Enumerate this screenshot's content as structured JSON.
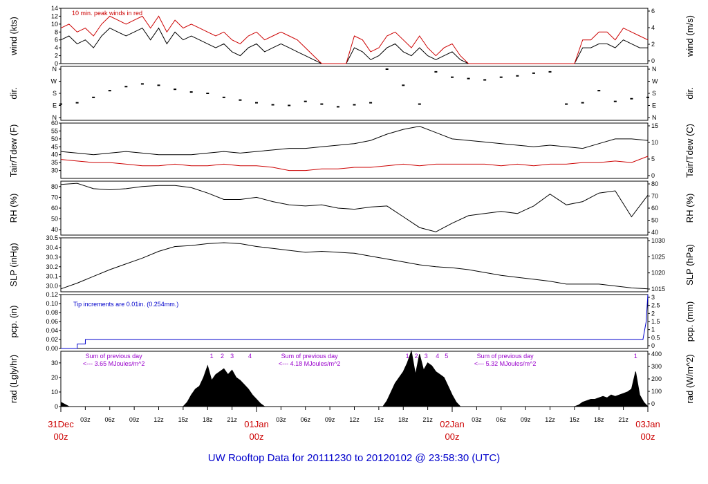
{
  "title": "UW Rooftop Data for 20111230  to  20120102 @ 23:58:30  (UTC)",
  "colors": {
    "accent": "#cc0000",
    "title": "#0000cc",
    "pcp": "#0000cc",
    "rad_note": "#9900cc",
    "trace": "#000000"
  },
  "chart_data": [
    {
      "type": "line",
      "panel": "wind",
      "ylabel_left": "wind (kts)",
      "ylabel_right": "wind (m/s)",
      "annotation": "10 min. peak winds in red",
      "ylim": [
        0,
        14
      ],
      "yticks_left": [
        "0",
        "2",
        "4",
        "6",
        "8",
        "10",
        "12",
        "14"
      ],
      "yticks_right": [
        "0",
        "2",
        "4",
        "6"
      ],
      "x": [
        0,
        1,
        2,
        3,
        4,
        5,
        6,
        7,
        8,
        9,
        10,
        11,
        12,
        13,
        14,
        15,
        16,
        17,
        18,
        19,
        20,
        21,
        22,
        23,
        24,
        25,
        26,
        27,
        28,
        29,
        30,
        31,
        32,
        33,
        34,
        35,
        36,
        37,
        38,
        39,
        40,
        41,
        42,
        43,
        44,
        45,
        46,
        47,
        48,
        49,
        50,
        51,
        52,
        53,
        54,
        55,
        56,
        57,
        58,
        59,
        60,
        61,
        62,
        63,
        64,
        65,
        66,
        67,
        68,
        69,
        70,
        71,
        72
      ],
      "series": [
        {
          "values": [
            6,
            7,
            5,
            6,
            4,
            7,
            9,
            8,
            7,
            8,
            9,
            6,
            9,
            5,
            8,
            6,
            7,
            6,
            5,
            4,
            5,
            3,
            2,
            4,
            5,
            3,
            4,
            5,
            4,
            3,
            2,
            1,
            0,
            0,
            0,
            0,
            4,
            3,
            1,
            2,
            4,
            5,
            3,
            2,
            4,
            2,
            1,
            2,
            3,
            1,
            0,
            0,
            0,
            0,
            0,
            0,
            0,
            0,
            0,
            0,
            0,
            0,
            0,
            0,
            4,
            4,
            5,
            5,
            4,
            6,
            5,
            4,
            4
          ]
        },
        {
          "values": [
            9,
            10,
            8,
            9,
            7,
            10,
            12,
            11,
            10,
            11,
            12,
            9,
            12,
            8,
            11,
            9,
            10,
            9,
            8,
            7,
            8,
            6,
            5,
            7,
            8,
            6,
            7,
            8,
            7,
            6,
            4,
            2,
            0,
            0,
            0,
            0,
            7,
            6,
            3,
            4,
            7,
            8,
            6,
            4,
            7,
            4,
            2,
            4,
            5,
            2,
            0,
            0,
            0,
            0,
            0,
            0,
            0,
            0,
            0,
            0,
            0,
            0,
            0,
            0,
            6,
            6,
            8,
            8,
            6,
            9,
            8,
            7,
            6
          ]
        }
      ]
    },
    {
      "type": "scatter",
      "panel": "dir",
      "ylabel_left": "dir.",
      "ylabel_right": "dir.",
      "yticks": [
        "N",
        "E",
        "S",
        "W",
        "N"
      ],
      "x": [
        0,
        2,
        4,
        6,
        8,
        10,
        12,
        14,
        16,
        18,
        20,
        22,
        24,
        26,
        28,
        30,
        32,
        34,
        36,
        38,
        40,
        42,
        44,
        46,
        48,
        50,
        52,
        54,
        56,
        58,
        60,
        62,
        64,
        66,
        68,
        70,
        72
      ],
      "values": [
        100,
        110,
        150,
        200,
        230,
        250,
        240,
        210,
        190,
        180,
        150,
        130,
        110,
        95,
        90,
        120,
        100,
        80,
        95,
        110,
        360,
        240,
        100,
        340,
        300,
        290,
        280,
        300,
        310,
        330,
        340,
        100,
        110,
        200,
        120,
        140,
        150
      ]
    },
    {
      "type": "line",
      "panel": "temp",
      "ylabel_left": "Tair/Tdew (F)",
      "ylabel_right": "Tair/Tdew (C)",
      "ylim": [
        25,
        60
      ],
      "yticks_left": [
        "30",
        "35",
        "40",
        "45",
        "50",
        "55",
        "60"
      ],
      "yticks_right": [
        "0",
        "5",
        "10",
        "15"
      ],
      "x": [
        0,
        2,
        4,
        6,
        8,
        10,
        12,
        14,
        16,
        18,
        20,
        22,
        24,
        26,
        28,
        30,
        32,
        34,
        36,
        38,
        40,
        42,
        44,
        46,
        48,
        50,
        52,
        54,
        56,
        58,
        60,
        62,
        64,
        66,
        68,
        70,
        72
      ],
      "series": [
        {
          "values": [
            42,
            41,
            40,
            41,
            42,
            41,
            40,
            40,
            40,
            41,
            42,
            41,
            42,
            43,
            44,
            44,
            45,
            46,
            47,
            49,
            53,
            56,
            58,
            54,
            50,
            49,
            48,
            47,
            46,
            45,
            46,
            45,
            44,
            47,
            50,
            50,
            49
          ]
        },
        {
          "values": [
            37,
            36,
            35,
            35,
            34,
            33,
            33,
            34,
            33,
            33,
            34,
            33,
            33,
            32,
            30,
            30,
            31,
            31,
            32,
            32,
            33,
            34,
            33,
            34,
            34,
            34,
            34,
            33,
            34,
            33,
            34,
            34,
            35,
            35,
            36,
            35,
            39
          ]
        }
      ]
    },
    {
      "type": "line",
      "panel": "rh",
      "ylabel_left": "RH (%)",
      "ylabel_right": "RH (%)",
      "ylim": [
        35,
        85
      ],
      "yticks_left": [
        "40",
        "50",
        "60",
        "70",
        "80"
      ],
      "yticks_right": [
        "40",
        "50",
        "60",
        "70",
        "80"
      ],
      "x": [
        0,
        2,
        4,
        6,
        8,
        10,
        12,
        14,
        16,
        18,
        20,
        22,
        24,
        26,
        28,
        30,
        32,
        34,
        36,
        38,
        40,
        42,
        44,
        46,
        48,
        50,
        52,
        54,
        56,
        58,
        60,
        62,
        64,
        66,
        68,
        70,
        72
      ],
      "values": [
        82,
        83,
        78,
        77,
        78,
        80,
        81,
        81,
        79,
        74,
        68,
        68,
        70,
        66,
        63,
        62,
        63,
        60,
        59,
        61,
        62,
        52,
        42,
        38,
        46,
        53,
        55,
        57,
        55,
        62,
        73,
        63,
        66,
        74,
        76,
        52,
        72
      ]
    },
    {
      "type": "line",
      "panel": "slp",
      "ylabel_left": "SLP (inHg)",
      "ylabel_right": "SLP (hPa)",
      "ylim": [
        29.94,
        30.5
      ],
      "yticks_left": [
        "30.0",
        "30.1",
        "30.2",
        "30.3",
        "30.4",
        "30.5"
      ],
      "yticks_right": [
        "1015",
        "1020",
        "1025",
        "1030"
      ],
      "x": [
        0,
        2,
        4,
        6,
        8,
        10,
        12,
        14,
        16,
        18,
        20,
        22,
        24,
        26,
        28,
        30,
        32,
        34,
        36,
        38,
        40,
        42,
        44,
        46,
        48,
        50,
        52,
        54,
        56,
        58,
        60,
        62,
        64,
        66,
        68,
        70,
        72
      ],
      "values": [
        29.97,
        30.03,
        30.1,
        30.17,
        30.23,
        30.29,
        30.36,
        30.41,
        30.42,
        30.44,
        30.45,
        30.44,
        30.41,
        30.39,
        30.37,
        30.35,
        30.36,
        30.35,
        30.34,
        30.31,
        30.28,
        30.25,
        30.22,
        30.2,
        30.19,
        30.17,
        30.14,
        30.11,
        30.09,
        30.07,
        30.05,
        30.02,
        30.02,
        30.02,
        30.0,
        29.98,
        29.97
      ]
    },
    {
      "type": "line",
      "panel": "pcp",
      "ylabel_left": "pcp. (in)",
      "ylabel_right": "pcp. (mm)",
      "annotation": "Tip increments are 0.01in. (0.254mm.)",
      "ylim": [
        0,
        0.12
      ],
      "yticks_left": [
        "0.00",
        "0.02",
        "0.04",
        "0.06",
        "0.08",
        "0.10",
        "0.12"
      ],
      "yticks_right": [
        "0",
        "0.5",
        "1",
        "1.5",
        "2",
        "2.5",
        "3"
      ],
      "x": [
        0,
        2,
        2.01,
        3,
        3.01,
        71.4,
        71.8,
        72
      ],
      "values": [
        0,
        0,
        0.01,
        0.01,
        0.02,
        0.02,
        0.06,
        0.12
      ]
    },
    {
      "type": "area",
      "panel": "rad",
      "ylabel_left": "rad (Lgly/hr)",
      "ylabel_right": "rad (W/m^2)",
      "ylim": [
        0,
        38
      ],
      "yticks_left": [
        "0",
        "10",
        "20",
        "30"
      ],
      "yticks_right": [
        "0",
        "100",
        "200",
        "300",
        "400"
      ],
      "daily_notes": [
        {
          "line1": "Sum of previous day",
          "line2": "<--- 3.65 MJoules/m^2",
          "x": 6.5
        },
        {
          "line1": "Sum of previous day",
          "line2": "<--- 4.18 MJoules/m^2",
          "x": 30.5
        },
        {
          "line1": "Sum of previous day",
          "line2": "<--- 5.32 MJoules/m^2",
          "x": 54.5
        }
      ],
      "markers": [
        {
          "label": "1",
          "x": 18.5
        },
        {
          "label": "2",
          "x": 19.8
        },
        {
          "label": "3",
          "x": 21
        },
        {
          "label": "4",
          "x": 23.2
        },
        {
          "label": "1",
          "x": 42.5
        },
        {
          "label": "2",
          "x": 43.6
        },
        {
          "label": "3",
          "x": 44.8
        },
        {
          "label": "4",
          "x": 46.2
        },
        {
          "label": "5",
          "x": 47.3
        },
        {
          "label": "1",
          "x": 70.5
        }
      ],
      "x": [
        0,
        1,
        1.5,
        15,
        15.5,
        16,
        16.5,
        17,
        17.5,
        18,
        18.5,
        19,
        19.5,
        20,
        20.5,
        21,
        21.5,
        22,
        22.5,
        23,
        23.5,
        24,
        24.5,
        25,
        39.5,
        40,
        40.5,
        41,
        41.5,
        42,
        42.5,
        43,
        43.5,
        44,
        44.5,
        45,
        45.5,
        46,
        46.5,
        47,
        47.5,
        48,
        48.5,
        49,
        63,
        63.5,
        64,
        64.5,
        65,
        65.5,
        66,
        66.5,
        67,
        67.5,
        68,
        68.5,
        69,
        69.5,
        70,
        70.5,
        71,
        71.5,
        72
      ],
      "values": [
        3,
        0,
        0,
        0,
        3,
        8,
        12,
        14,
        20,
        28,
        18,
        22,
        24,
        26,
        22,
        25,
        20,
        18,
        15,
        12,
        8,
        5,
        2,
        0,
        0,
        4,
        10,
        16,
        20,
        24,
        30,
        38,
        22,
        36,
        25,
        30,
        28,
        24,
        22,
        20,
        14,
        8,
        3,
        0,
        0,
        1,
        3,
        4,
        5,
        5,
        6,
        7,
        6,
        8,
        7,
        8,
        9,
        10,
        12,
        24,
        8,
        3,
        0
      ]
    }
  ],
  "x_axis": {
    "minor_ticks": [
      {
        "label": "03z",
        "x": 3
      },
      {
        "label": "06z",
        "x": 6
      },
      {
        "label": "09z",
        "x": 9
      },
      {
        "label": "12z",
        "x": 12
      },
      {
        "label": "15z",
        "x": 15
      },
      {
        "label": "18z",
        "x": 18
      },
      {
        "label": "21z",
        "x": 21
      },
      {
        "label": "03z",
        "x": 27
      },
      {
        "label": "06z",
        "x": 30
      },
      {
        "label": "09z",
        "x": 33
      },
      {
        "label": "12z",
        "x": 36
      },
      {
        "label": "15z",
        "x": 39
      },
      {
        "label": "18z",
        "x": 42
      },
      {
        "label": "21z",
        "x": 45
      },
      {
        "label": "03z",
        "x": 51
      },
      {
        "label": "06z",
        "x": 54
      },
      {
        "label": "09z",
        "x": 57
      },
      {
        "label": "12z",
        "x": 60
      },
      {
        "label": "15z",
        "x": 63
      },
      {
        "label": "18z",
        "x": 66
      },
      {
        "label": "21z",
        "x": 69
      }
    ],
    "day_ticks": [
      {
        "date": "31Dec",
        "hour": "00z",
        "x": 0
      },
      {
        "date": "01Jan",
        "hour": "00z",
        "x": 24
      },
      {
        "date": "02Jan",
        "hour": "00z",
        "x": 48
      },
      {
        "date": "03Jan",
        "hour": "00z",
        "x": 72
      }
    ]
  }
}
